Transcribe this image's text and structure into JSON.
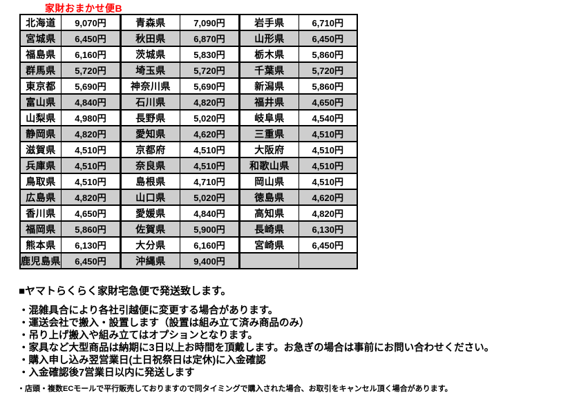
{
  "title": {
    "text": "家財おまかせ便B",
    "color": "#ff0000"
  },
  "colors": {
    "row_alt_gray": "#cecece",
    "border_black": "#000000",
    "text_black": "#000000",
    "background": "#ffffff"
  },
  "fee_table": {
    "column_types": [
      "prefecture",
      "price",
      "prefecture",
      "price",
      "prefecture",
      "price"
    ],
    "rows": [
      {
        "shaded": false,
        "cells": [
          "北海道",
          "9,070円",
          "青森県",
          "7,090円",
          "岩手県",
          "6,710円"
        ]
      },
      {
        "shaded": true,
        "cells": [
          "宮城県",
          "6,450円",
          "秋田県",
          "6,870円",
          "山形県",
          "6,450円"
        ]
      },
      {
        "shaded": false,
        "cells": [
          "福島県",
          "6,160円",
          "茨城県",
          "5,830円",
          "栃木県",
          "5,860円"
        ]
      },
      {
        "shaded": true,
        "cells": [
          "群馬県",
          "5,720円",
          "埼玉県",
          "5,720円",
          "千葉県",
          "5,720円"
        ]
      },
      {
        "shaded": false,
        "cells": [
          "東京都",
          "5,690円",
          "神奈川県",
          "5,690円",
          "新潟県",
          "5,860円"
        ]
      },
      {
        "shaded": true,
        "cells": [
          "富山県",
          "4,840円",
          "石川県",
          "4,820円",
          "福井県",
          "4,650円"
        ]
      },
      {
        "shaded": false,
        "cells": [
          "山梨県",
          "4,980円",
          "長野県",
          "5,020円",
          "岐阜県",
          "4,540円"
        ]
      },
      {
        "shaded": true,
        "cells": [
          "静岡県",
          "4,820円",
          "愛知県",
          "4,620円",
          "三重県",
          "4,510円"
        ]
      },
      {
        "shaded": false,
        "cells": [
          "滋賀県",
          "4,510円",
          "京都府",
          "4,510円",
          "大阪府",
          "4,510円"
        ]
      },
      {
        "shaded": true,
        "cells": [
          "兵庫県",
          "4,510円",
          "奈良県",
          "4,510円",
          "和歌山県",
          "4,510円"
        ]
      },
      {
        "shaded": false,
        "cells": [
          "鳥取県",
          "4,510円",
          "島根県",
          "4,710円",
          "岡山県",
          "4,510円"
        ]
      },
      {
        "shaded": true,
        "cells": [
          "広島県",
          "4,820円",
          "山口県",
          "5,020円",
          "徳島県",
          "4,620円"
        ]
      },
      {
        "shaded": false,
        "cells": [
          "香川県",
          "4,650円",
          "愛媛県",
          "4,840円",
          "高知県",
          "4,820円"
        ]
      },
      {
        "shaded": true,
        "cells": [
          "福岡県",
          "5,860円",
          "佐賀県",
          "5,900円",
          "長崎県",
          "6,130円"
        ]
      },
      {
        "shaded": false,
        "cells": [
          "熊本県",
          "6,130円",
          "大分県",
          "6,160円",
          "宮崎県",
          "6,450円"
        ]
      },
      {
        "shaded": true,
        "cells": [
          "鹿児島県",
          "6,450円",
          "沖縄県",
          "9,400円",
          "",
          ""
        ]
      }
    ]
  },
  "notes": {
    "heading": "■ヤマトらくらく家財宅急便で発送致します。",
    "bullets": [
      "・混雑具合により各社引越便に変更する場合があります。",
      "・運送会社で搬入・設置します（設置は組み立て済み商品のみ）",
      "・吊り上げ搬入や組み立てはオプションとなります。",
      "・家具など大型商品は納期に3日以上お時間を頂戴します。お急ぎの場合は事前にお問い合わせください。",
      "・購入申し込み翌営業日(土日祝祭日は定休)に入金確認",
      "・入金確認後7営業日以内に発送します"
    ],
    "small_note": "・店頭・複数ECモールで平行販売しておりますので同タイミングで購入された場合、お取引をキャンセル頂く場合があります。"
  }
}
